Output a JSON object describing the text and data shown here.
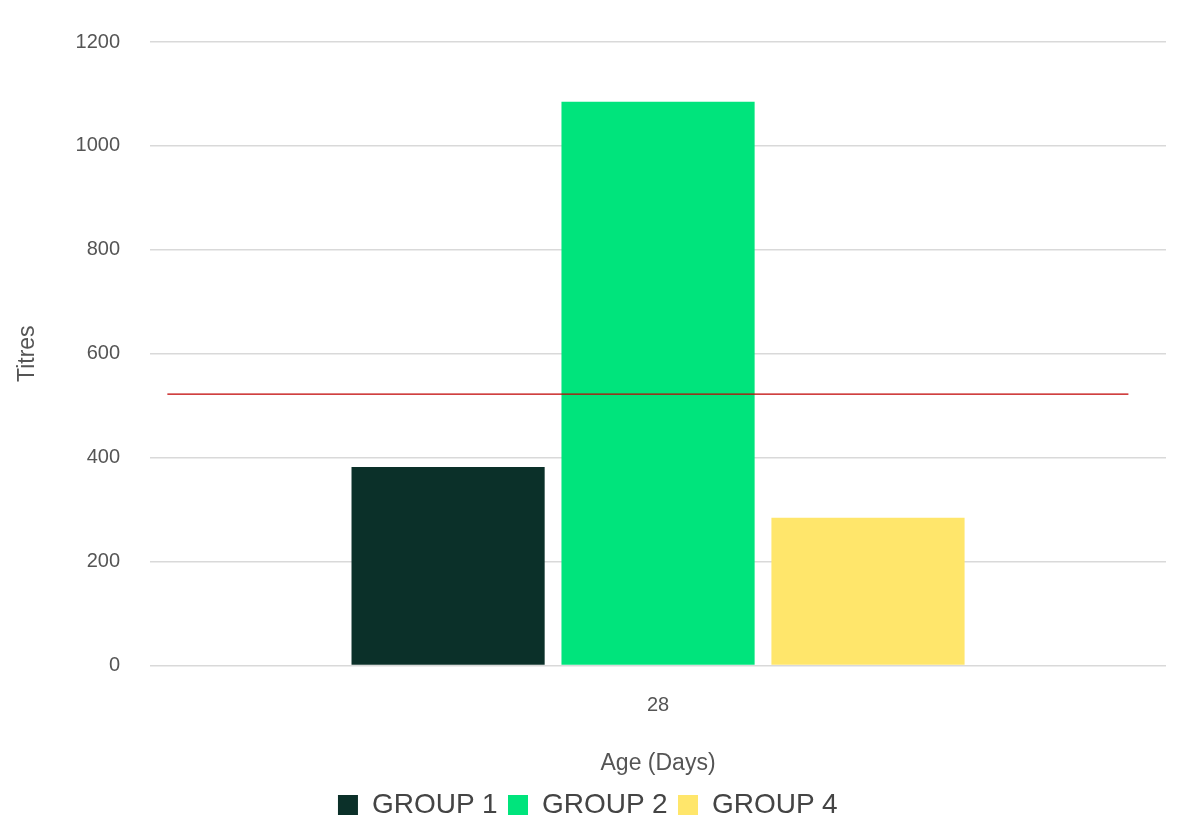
{
  "chart_data": {
    "type": "bar",
    "xlabel": "Age (Days)",
    "ylabel": "Titres",
    "categories": [
      "28"
    ],
    "series": [
      {
        "name": "GROUP 1",
        "color": "#0b3029",
        "values": [
          382
        ]
      },
      {
        "name": "GROUP 2",
        "color": "#00e47c",
        "values": [
          1085
        ]
      },
      {
        "name": "GROUP 4",
        "color": "#ffe66b",
        "values": [
          284
        ]
      }
    ],
    "ylim": [
      0,
      1200
    ],
    "yticks": [
      0,
      200,
      400,
      600,
      800,
      1000,
      1200
    ],
    "grid": "y",
    "legend": "bottom",
    "ref_lines": [
      {
        "axis": "y",
        "value": 522,
        "color": "#c00000"
      }
    ]
  }
}
